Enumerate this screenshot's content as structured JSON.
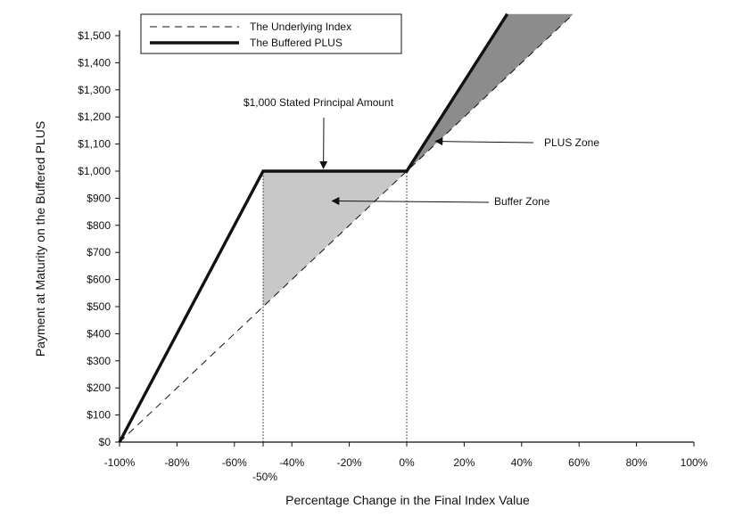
{
  "chart_data": {
    "type": "line",
    "xlabel": "Percentage Change in the Final Index Value",
    "ylabel": "Payment at Maturity on the Buffered PLUS",
    "xlim": [
      -100,
      100
    ],
    "ylim": [
      0,
      1500
    ],
    "x_ticks": [
      -100,
      -80,
      -60,
      -40,
      -20,
      0,
      20,
      40,
      60,
      80,
      100
    ],
    "x_tick_labels": [
      "-100%",
      "-80%",
      "-60%",
      "-40%",
      "-20%",
      "0%",
      "20%",
      "40%",
      "60%",
      "80%",
      "100%"
    ],
    "extra_x_tick": {
      "x": -50,
      "label": "-50%"
    },
    "y_ticks": [
      0,
      100,
      200,
      300,
      400,
      500,
      600,
      700,
      800,
      900,
      1000,
      1100,
      1200,
      1300,
      1400,
      1500
    ],
    "y_tick_labels": [
      "$0",
      "$100",
      "$200",
      "$300",
      "$400",
      "$500",
      "$600",
      "$700",
      "$800",
      "$900",
      "$1,000",
      "$1,100",
      "$1,200",
      "$1,300",
      "$1,400",
      "$1,500"
    ],
    "grid": false,
    "legend_position": "top-left",
    "series": [
      {
        "name": "The Underlying Index",
        "style": "dashed",
        "x": [
          -100,
          58
        ],
        "y": [
          0,
          1580
        ]
      },
      {
        "name": "The Buffered PLUS",
        "style": "thick-solid",
        "x": [
          -100,
          -50,
          0,
          35
        ],
        "y": [
          0,
          1000,
          1000,
          1580
        ]
      }
    ],
    "zones": [
      {
        "name": "Buffer Zone",
        "color": "#c8c8c8",
        "polygon": [
          [
            -50,
            1000
          ],
          [
            0,
            1000
          ],
          [
            -50,
            500
          ]
        ]
      },
      {
        "name": "PLUS Zone",
        "color": "#8c8c8c",
        "polygon": [
          [
            0,
            1000
          ],
          [
            35,
            1580
          ],
          [
            58,
            1580
          ]
        ]
      }
    ],
    "reference_lines": [
      {
        "x": -50,
        "y_from": 0,
        "y_to": 1000,
        "style": "dotted"
      },
      {
        "x": 0,
        "y_from": 0,
        "y_to": 1000,
        "style": "dotted"
      }
    ],
    "annotations": [
      {
        "text": "$1,000 Stated Principal Amount",
        "arrow_to": {
          "x": -29,
          "y": 1010
        }
      },
      {
        "text": "Buffer  Zone",
        "arrow_to": {
          "x": -26,
          "y": 890
        }
      },
      {
        "text": "PLUS Zone",
        "arrow_to": {
          "x": 10,
          "y": 1110
        }
      }
    ],
    "colors": {
      "line": "#111111",
      "buffer_fill": "#c8c8c8",
      "plus_fill": "#8c8c8c"
    }
  }
}
